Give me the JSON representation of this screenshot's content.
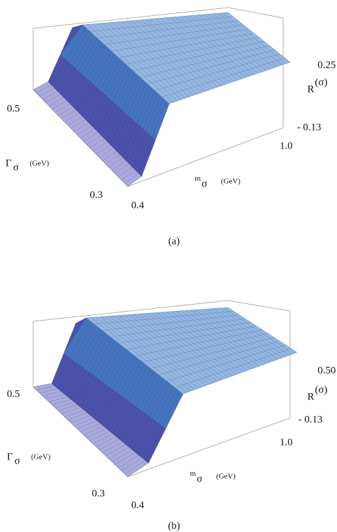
{
  "panels": [
    {
      "caption": "(a)",
      "z_label": "R",
      "z_label_sup": "(σ)",
      "z_ticks": [
        "0.25",
        "- 0.13"
      ],
      "y_label": "Γ",
      "y_label_sub": "σ",
      "y_unit": "(GeV)",
      "y_ticks": [
        "0.5",
        "0.3"
      ],
      "x_label": "m",
      "x_label_sub": "σ",
      "x_unit": "(GeV)",
      "x_ticks": [
        "1.0",
        "0.4"
      ]
    },
    {
      "caption": "(b)",
      "z_label": "R",
      "z_label_sup": "(σ)",
      "z_ticks": [
        "0.50",
        "- 0.13"
      ],
      "y_label": "Γ",
      "y_label_sub": "σ",
      "y_unit": "(GeV)",
      "y_ticks": [
        "0.5",
        "0.3"
      ],
      "x_label": "m",
      "x_label_sub": "σ",
      "x_unit": "(GeV)",
      "x_ticks": [
        "1.0",
        "0.4"
      ]
    }
  ]
}
